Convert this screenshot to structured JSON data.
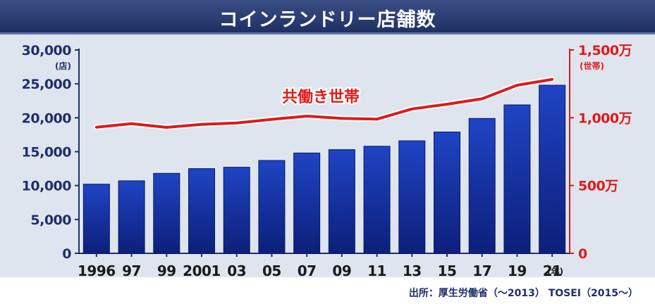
{
  "header": {
    "title": "コインランドリー店舗数"
  },
  "source": "出所：厚生労働省（〜2013） TOSEI（2015〜）",
  "colors": {
    "bar": "#1f44c4",
    "bar_dark": "#0d1f7a",
    "line": "#e11919",
    "axis_left": "#1f2f6a",
    "axis_right": "#e11919"
  },
  "chart_data": {
    "type": "bar",
    "title": "コインランドリー店舗数",
    "categories": [
      "1996",
      "97",
      "99",
      "2001",
      "03",
      "05",
      "07",
      "09",
      "11",
      "13",
      "15",
      "17",
      "19",
      "21"
    ],
    "category_suffix": "(年)",
    "series": [
      {
        "name": "",
        "axis": "left",
        "type": "bar",
        "values": [
          10200,
          10700,
          11800,
          12500,
          12700,
          13700,
          14800,
          15300,
          15800,
          16600,
          17900,
          19900,
          21900,
          24800
        ]
      },
      {
        "name": "共働き世帯",
        "axis": "right",
        "type": "line",
        "values": [
          930,
          956,
          929,
          951,
          961,
          988,
          1012,
          995,
          990,
          1065,
          1100,
          1140,
          1240,
          1283
        ]
      }
    ],
    "left_axis": {
      "unit": "(店)",
      "ylim": [
        0,
        30000
      ],
      "ticks": [
        "0",
        "5,000",
        "10,000",
        "15,000",
        "20,000",
        "25,000",
        "30,000"
      ]
    },
    "right_axis": {
      "unit": "(世帯)",
      "ylim": [
        0,
        1500
      ],
      "ticks": [
        "0",
        "500万",
        "1,000万",
        "1,500万"
      ]
    },
    "annotations": [
      {
        "text": "共働き世帯"
      }
    ]
  }
}
